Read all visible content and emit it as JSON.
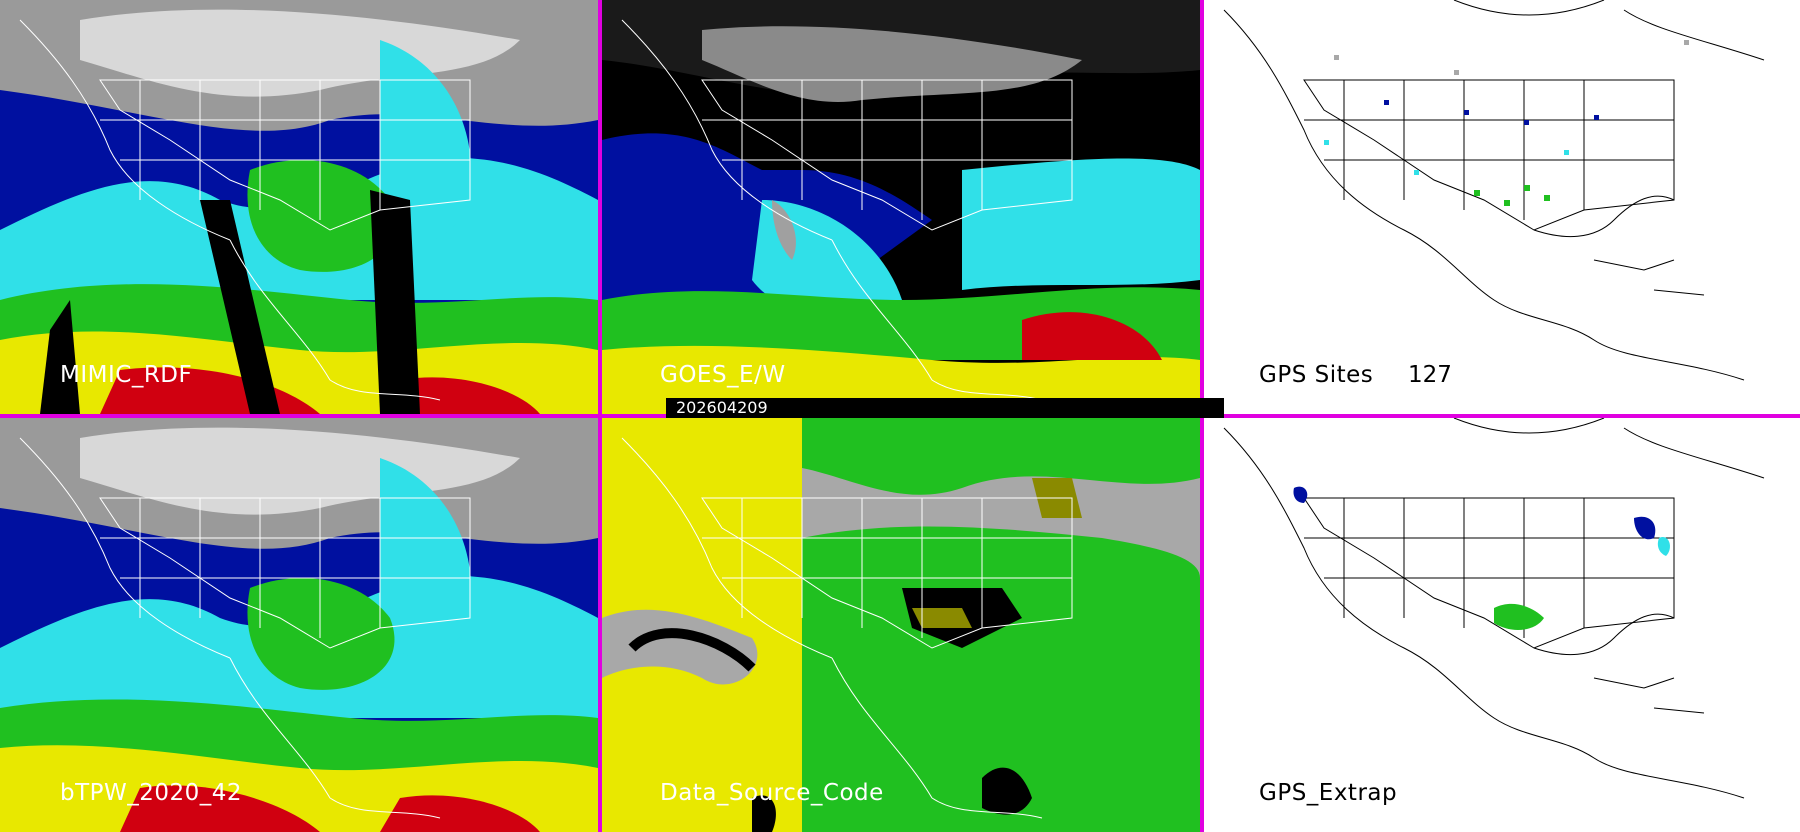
{
  "panels": [
    {
      "label": "MIMIC_RDF"
    },
    {
      "label": "GOES_E/W"
    },
    {
      "label": "GPS Sites",
      "count": "127"
    },
    {
      "label": "bTPW_2020_42"
    },
    {
      "label": "Data_Source_Code"
    },
    {
      "label": "GPS_Extrap"
    }
  ],
  "date_bar": "202604209",
  "colors": {
    "separator": "#e000e0",
    "ocean_blue": "#0010a0",
    "cyan": "#30e0e8",
    "green": "#20c020",
    "yellow": "#e8e800",
    "red": "#d00010",
    "gray": "#a8a8a8"
  }
}
